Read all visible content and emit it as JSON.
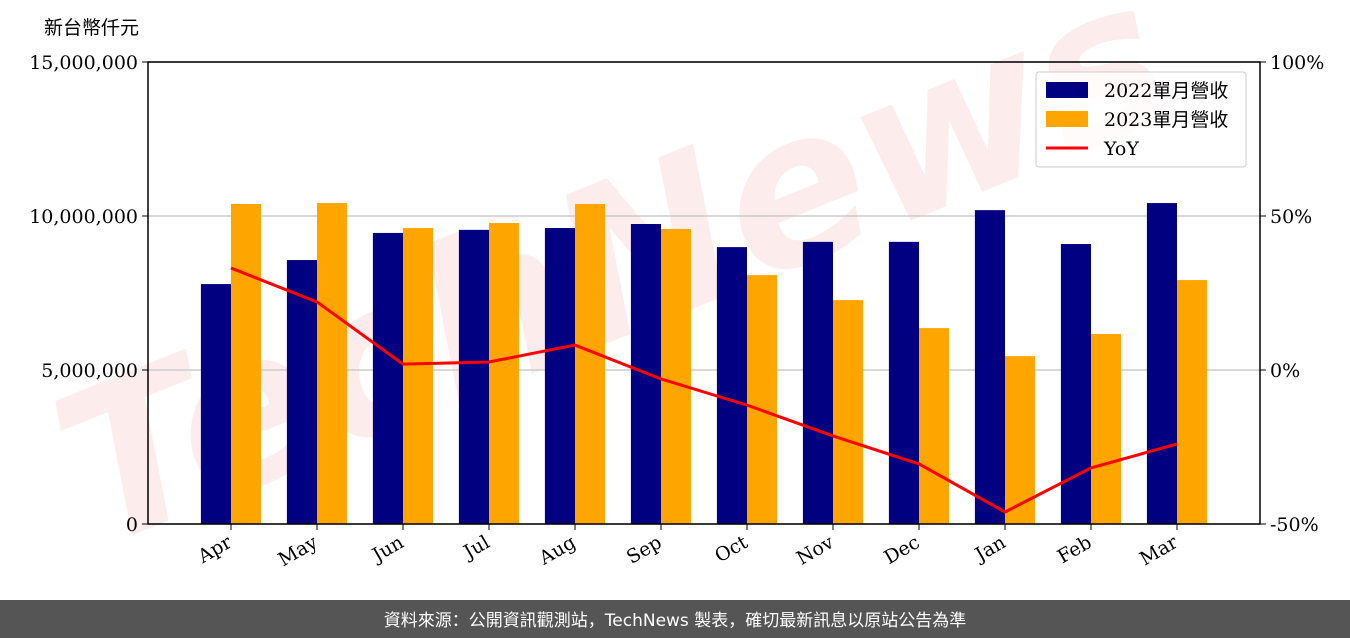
{
  "chart_data": {
    "type": "bar",
    "y_label": "新台幣仟元",
    "watermark": "TechNews",
    "footer": "資料來源：公開資訊觀測站，TechNews 製表，確切最新訊息以原站公告為準",
    "categories": [
      "Apr",
      "May",
      "Jun",
      "Jul",
      "Aug",
      "Sep",
      "Oct",
      "Nov",
      "Dec",
      "Jan",
      "Feb",
      "Mar"
    ],
    "series": [
      {
        "name": "2022單月營收",
        "color": "#000080",
        "values": [
          7790000,
          8570000,
          9450000,
          9550000,
          9610000,
          9740000,
          8990000,
          9160000,
          9160000,
          10190000,
          9090000,
          10420000
        ]
      },
      {
        "name": "2023單月營收",
        "color": "#ffa500",
        "values": [
          10390000,
          10420000,
          9610000,
          9770000,
          10390000,
          9580000,
          8080000,
          7270000,
          6360000,
          5450000,
          6170000,
          7920000
        ]
      },
      {
        "name": "YoY",
        "color": "#ff0000",
        "axis": "y2",
        "type": "line",
        "values": [
          33.1,
          22.1,
          1.9,
          2.6,
          8.1,
          -2.9,
          -11.4,
          -21.4,
          -30.5,
          -46.1,
          -31.8,
          -24.0
        ]
      }
    ],
    "ylim": [
      0,
      15000000
    ],
    "yticks": [
      0,
      {
        "value": 5000000,
        "label": "5,000,000"
      },
      {
        "value": 10000000,
        "label": "10,000,000"
      },
      {
        "value": 15000000,
        "label": "15,000,000"
      }
    ],
    "y2lim": [
      -50,
      100
    ],
    "y2ticks": [
      {
        "value": -50,
        "label": "-50%"
      },
      {
        "value": 0,
        "label": "0%"
      },
      {
        "value": 50,
        "label": "50%"
      },
      {
        "value": 100,
        "label": "100%"
      }
    ],
    "grid": true,
    "legend": "upper right"
  }
}
